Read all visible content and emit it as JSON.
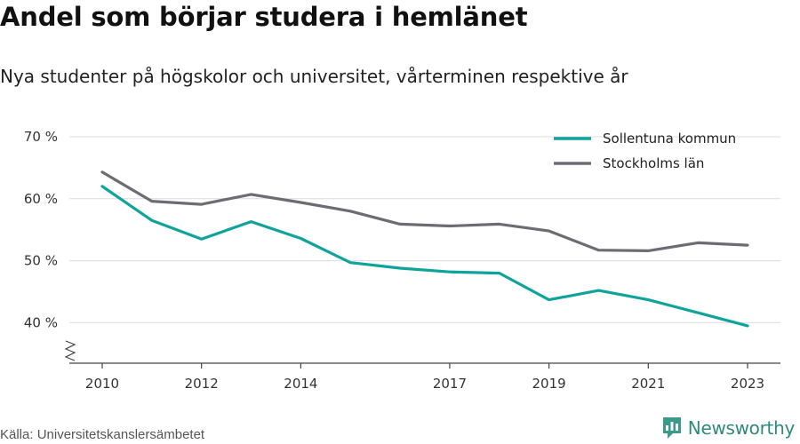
{
  "title": "Andel som börjar studera i hemlänet",
  "subtitle": "Nya studenter på högskolor och universitet, vårterminen respektive år",
  "source": "Källa: Universitetskanslersämbetet",
  "brand": {
    "name": "Newsworthy",
    "icon": "newsworthy-logo-icon",
    "color": "#3a9a8c"
  },
  "chart_data": {
    "type": "line",
    "title": "Andel som börjar studera i hemlänet",
    "ylim": [
      35,
      70
    ],
    "yticks": [
      {
        "value": 40,
        "label": "40 %"
      },
      {
        "value": 50,
        "label": "50 %"
      },
      {
        "value": 60,
        "label": "60 %"
      },
      {
        "value": 70,
        "label": "70 %"
      }
    ],
    "xlim": [
      2010,
      2023
    ],
    "xticks": [
      {
        "value": 2010,
        "label": "2010"
      },
      {
        "value": 2012,
        "label": "2012"
      },
      {
        "value": 2014,
        "label": "2014"
      },
      {
        "value": 2017,
        "label": "2017"
      },
      {
        "value": 2019,
        "label": "2019"
      },
      {
        "value": 2021,
        "label": "2021"
      },
      {
        "value": 2023,
        "label": "2023"
      }
    ],
    "x": [
      2010,
      2011,
      2012,
      2013,
      2014,
      2015,
      2016,
      2017,
      2018,
      2019,
      2020,
      2021,
      2022,
      2023
    ],
    "series": [
      {
        "name": "Sollentuna kommun",
        "color": "#10a39b",
        "values": [
          62.0,
          56.5,
          53.5,
          56.3,
          53.6,
          49.7,
          48.8,
          48.2,
          48.0,
          43.7,
          45.2,
          43.7,
          41.6,
          39.5
        ]
      },
      {
        "name": "Stockholms län",
        "color": "#6e6c72",
        "values": [
          64.3,
          59.6,
          59.1,
          60.7,
          59.4,
          58.0,
          55.9,
          55.6,
          55.9,
          54.8,
          51.7,
          51.6,
          52.9,
          52.5
        ]
      }
    ],
    "grid": true,
    "legend_position": "top-right",
    "axis_break": true
  }
}
